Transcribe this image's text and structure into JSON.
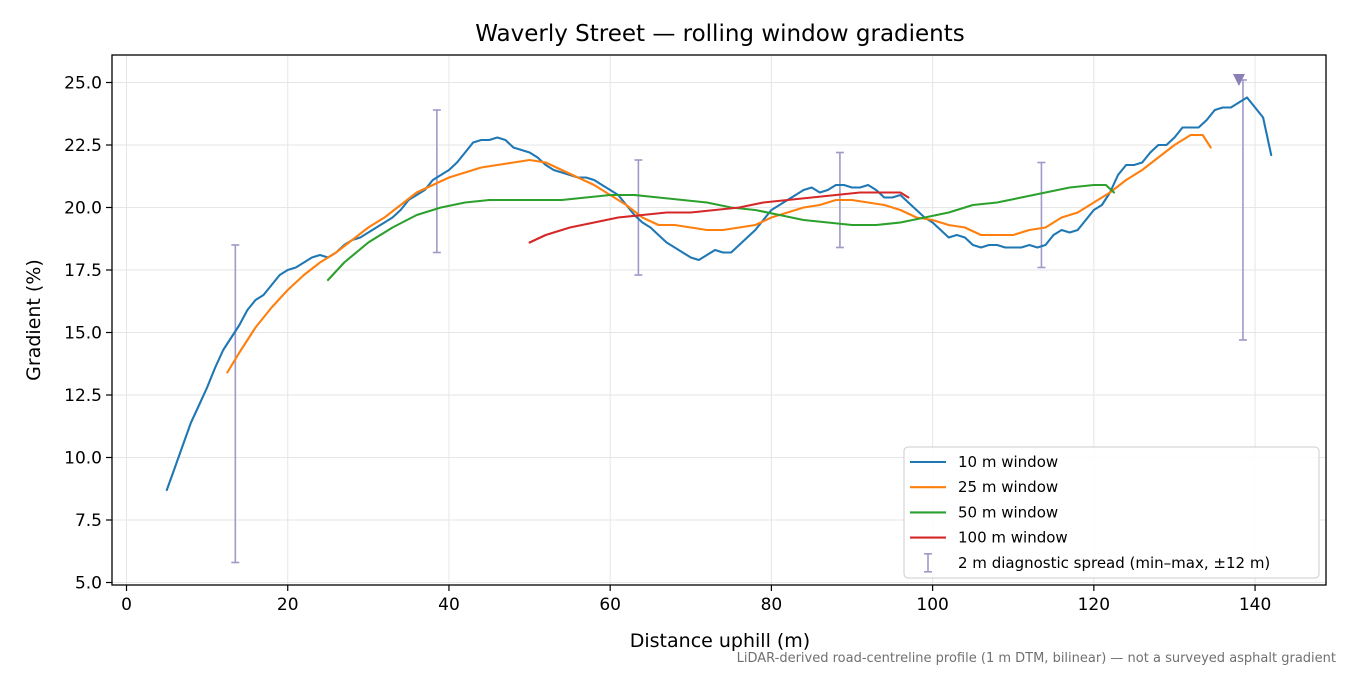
{
  "chart_data": {
    "type": "line",
    "title": "Waverly Street — rolling window gradients",
    "xlabel": "Distance uphill (m)",
    "ylabel": "Gradient (%)",
    "xlim": [
      -1.8,
      148.8
    ],
    "ylim": [
      4.9,
      26.1
    ],
    "x_ticks": [
      0,
      20,
      40,
      60,
      80,
      100,
      120,
      140
    ],
    "y_ticks": [
      5.0,
      7.5,
      10.0,
      12.5,
      15.0,
      17.5,
      20.0,
      22.5,
      25.0
    ],
    "grid": true,
    "legend_position": "lower right",
    "caption": "LiDAR-derived road-centreline profile (1 m DTM, bilinear) — not a surveyed asphalt gradient",
    "series": [
      {
        "name": "10 m window",
        "color": "#1f77b4",
        "points": [
          [
            5,
            8.7
          ],
          [
            6,
            9.6
          ],
          [
            7,
            10.5
          ],
          [
            8,
            11.4
          ],
          [
            9,
            12.1
          ],
          [
            10,
            12.8
          ],
          [
            11,
            13.6
          ],
          [
            12,
            14.3
          ],
          [
            13,
            14.8
          ],
          [
            14,
            15.3
          ],
          [
            15,
            15.9
          ],
          [
            16,
            16.3
          ],
          [
            17,
            16.5
          ],
          [
            18,
            16.9
          ],
          [
            19,
            17.3
          ],
          [
            20,
            17.5
          ],
          [
            21,
            17.6
          ],
          [
            22,
            17.8
          ],
          [
            23,
            18.0
          ],
          [
            24,
            18.1
          ],
          [
            25,
            18.0
          ],
          [
            26,
            18.2
          ],
          [
            27,
            18.5
          ],
          [
            28,
            18.7
          ],
          [
            29,
            18.8
          ],
          [
            30,
            19.0
          ],
          [
            31,
            19.2
          ],
          [
            32,
            19.4
          ],
          [
            33,
            19.6
          ],
          [
            34,
            19.9
          ],
          [
            35,
            20.3
          ],
          [
            36,
            20.5
          ],
          [
            37,
            20.7
          ],
          [
            38,
            21.1
          ],
          [
            39,
            21.3
          ],
          [
            40,
            21.5
          ],
          [
            41,
            21.8
          ],
          [
            42,
            22.2
          ],
          [
            43,
            22.6
          ],
          [
            44,
            22.7
          ],
          [
            45,
            22.7
          ],
          [
            46,
            22.8
          ],
          [
            47,
            22.7
          ],
          [
            48,
            22.4
          ],
          [
            49,
            22.3
          ],
          [
            50,
            22.2
          ],
          [
            51,
            22.0
          ],
          [
            52,
            21.7
          ],
          [
            53,
            21.5
          ],
          [
            54,
            21.4
          ],
          [
            55,
            21.3
          ],
          [
            56,
            21.2
          ],
          [
            57,
            21.2
          ],
          [
            58,
            21.1
          ],
          [
            59,
            20.9
          ],
          [
            60,
            20.7
          ],
          [
            61,
            20.5
          ],
          [
            62,
            20.1
          ],
          [
            63,
            19.7
          ],
          [
            64,
            19.4
          ],
          [
            65,
            19.2
          ],
          [
            66,
            18.9
          ],
          [
            67,
            18.6
          ],
          [
            68,
            18.4
          ],
          [
            69,
            18.2
          ],
          [
            70,
            18.0
          ],
          [
            71,
            17.9
          ],
          [
            72,
            18.1
          ],
          [
            73,
            18.3
          ],
          [
            74,
            18.2
          ],
          [
            75,
            18.2
          ],
          [
            76,
            18.5
          ],
          [
            77,
            18.8
          ],
          [
            78,
            19.1
          ],
          [
            79,
            19.5
          ],
          [
            80,
            19.9
          ],
          [
            81,
            20.1
          ],
          [
            82,
            20.3
          ],
          [
            83,
            20.5
          ],
          [
            84,
            20.7
          ],
          [
            85,
            20.8
          ],
          [
            86,
            20.6
          ],
          [
            87,
            20.7
          ],
          [
            88,
            20.9
          ],
          [
            89,
            20.9
          ],
          [
            90,
            20.8
          ],
          [
            91,
            20.8
          ],
          [
            92,
            20.9
          ],
          [
            93,
            20.7
          ],
          [
            94,
            20.4
          ],
          [
            95,
            20.4
          ],
          [
            96,
            20.5
          ],
          [
            97,
            20.2
          ],
          [
            98,
            19.9
          ],
          [
            99,
            19.6
          ],
          [
            100,
            19.4
          ],
          [
            101,
            19.1
          ],
          [
            102,
            18.8
          ],
          [
            103,
            18.9
          ],
          [
            104,
            18.8
          ],
          [
            105,
            18.5
          ],
          [
            106,
            18.4
          ],
          [
            107,
            18.5
          ],
          [
            108,
            18.5
          ],
          [
            109,
            18.4
          ],
          [
            110,
            18.4
          ],
          [
            111,
            18.4
          ],
          [
            112,
            18.5
          ],
          [
            113,
            18.4
          ],
          [
            114,
            18.5
          ],
          [
            115,
            18.9
          ],
          [
            116,
            19.1
          ],
          [
            117,
            19.0
          ],
          [
            118,
            19.1
          ],
          [
            119,
            19.5
          ],
          [
            120,
            19.9
          ],
          [
            121,
            20.1
          ],
          [
            122,
            20.6
          ],
          [
            123,
            21.3
          ],
          [
            124,
            21.7
          ],
          [
            125,
            21.7
          ],
          [
            126,
            21.8
          ],
          [
            127,
            22.2
          ],
          [
            128,
            22.5
          ],
          [
            129,
            22.5
          ],
          [
            130,
            22.8
          ],
          [
            131,
            23.2
          ],
          [
            132,
            23.2
          ],
          [
            133,
            23.2
          ],
          [
            134,
            23.5
          ],
          [
            135,
            23.9
          ],
          [
            136,
            24.0
          ],
          [
            137,
            24.0
          ],
          [
            138,
            24.2
          ],
          [
            139,
            24.4
          ],
          [
            140,
            24.0
          ],
          [
            141,
            23.6
          ],
          [
            142,
            22.1
          ]
        ]
      },
      {
        "name": "25 m window",
        "color": "#ff7f0e",
        "points": [
          [
            12.5,
            13.4
          ],
          [
            14,
            14.2
          ],
          [
            16,
            15.2
          ],
          [
            18,
            16.0
          ],
          [
            20,
            16.7
          ],
          [
            22,
            17.3
          ],
          [
            24,
            17.8
          ],
          [
            26,
            18.2
          ],
          [
            28,
            18.7
          ],
          [
            30,
            19.2
          ],
          [
            32,
            19.6
          ],
          [
            34,
            20.1
          ],
          [
            36,
            20.6
          ],
          [
            38,
            20.9
          ],
          [
            40,
            21.2
          ],
          [
            42,
            21.4
          ],
          [
            44,
            21.6
          ],
          [
            46,
            21.7
          ],
          [
            48,
            21.8
          ],
          [
            50,
            21.9
          ],
          [
            52,
            21.8
          ],
          [
            54,
            21.5
          ],
          [
            56,
            21.2
          ],
          [
            58,
            20.9
          ],
          [
            60,
            20.5
          ],
          [
            62,
            20.1
          ],
          [
            64,
            19.6
          ],
          [
            66,
            19.3
          ],
          [
            68,
            19.3
          ],
          [
            70,
            19.2
          ],
          [
            72,
            19.1
          ],
          [
            74,
            19.1
          ],
          [
            76,
            19.2
          ],
          [
            78,
            19.3
          ],
          [
            80,
            19.6
          ],
          [
            82,
            19.8
          ],
          [
            84,
            20.0
          ],
          [
            86,
            20.1
          ],
          [
            88,
            20.3
          ],
          [
            90,
            20.3
          ],
          [
            92,
            20.2
          ],
          [
            94,
            20.1
          ],
          [
            96,
            19.9
          ],
          [
            98,
            19.6
          ],
          [
            100,
            19.5
          ],
          [
            102,
            19.3
          ],
          [
            104,
            19.2
          ],
          [
            106,
            18.9
          ],
          [
            108,
            18.9
          ],
          [
            110,
            18.9
          ],
          [
            112,
            19.1
          ],
          [
            114,
            19.2
          ],
          [
            116,
            19.6
          ],
          [
            118,
            19.8
          ],
          [
            120,
            20.2
          ],
          [
            122,
            20.6
          ],
          [
            124,
            21.1
          ],
          [
            126,
            21.5
          ],
          [
            128,
            22.0
          ],
          [
            130,
            22.5
          ],
          [
            132,
            22.9
          ],
          [
            133.5,
            22.9
          ],
          [
            134.5,
            22.4
          ]
        ]
      },
      {
        "name": "50 m window",
        "color": "#2ca02c",
        "points": [
          [
            25,
            17.1
          ],
          [
            27,
            17.8
          ],
          [
            30,
            18.6
          ],
          [
            33,
            19.2
          ],
          [
            36,
            19.7
          ],
          [
            39,
            20.0
          ],
          [
            42,
            20.2
          ],
          [
            45,
            20.3
          ],
          [
            48,
            20.3
          ],
          [
            51,
            20.3
          ],
          [
            54,
            20.3
          ],
          [
            57,
            20.4
          ],
          [
            60,
            20.5
          ],
          [
            63,
            20.5
          ],
          [
            66,
            20.4
          ],
          [
            69,
            20.3
          ],
          [
            72,
            20.2
          ],
          [
            75,
            20.0
          ],
          [
            78,
            19.9
          ],
          [
            81,
            19.7
          ],
          [
            84,
            19.5
          ],
          [
            87,
            19.4
          ],
          [
            90,
            19.3
          ],
          [
            93,
            19.3
          ],
          [
            96,
            19.4
          ],
          [
            99,
            19.6
          ],
          [
            102,
            19.8
          ],
          [
            105,
            20.1
          ],
          [
            108,
            20.2
          ],
          [
            111,
            20.4
          ],
          [
            114,
            20.6
          ],
          [
            117,
            20.8
          ],
          [
            120,
            20.9
          ],
          [
            121.5,
            20.9
          ],
          [
            122.5,
            20.6
          ]
        ]
      },
      {
        "name": "100 m window",
        "color": "#d62728",
        "points": [
          [
            50,
            18.6
          ],
          [
            52,
            18.9
          ],
          [
            55,
            19.2
          ],
          [
            58,
            19.4
          ],
          [
            61,
            19.6
          ],
          [
            64,
            19.7
          ],
          [
            67,
            19.8
          ],
          [
            70,
            19.8
          ],
          [
            73,
            19.9
          ],
          [
            76,
            20.0
          ],
          [
            79,
            20.2
          ],
          [
            82,
            20.3
          ],
          [
            85,
            20.4
          ],
          [
            88,
            20.5
          ],
          [
            91,
            20.6
          ],
          [
            94,
            20.6
          ],
          [
            96,
            20.6
          ],
          [
            97,
            20.4
          ]
        ]
      },
      {
        "name": "2 m diagnostic spread (min–max, ±12 m)",
        "type": "errorbar",
        "color": "#9e9ac8",
        "bars": [
          {
            "x": 13.5,
            "min": 5.8,
            "max": 18.5
          },
          {
            "x": 38.5,
            "min": 18.2,
            "max": 23.9
          },
          {
            "x": 63.5,
            "min": 17.3,
            "max": 21.9
          },
          {
            "x": 88.5,
            "min": 18.4,
            "max": 22.2
          },
          {
            "x": 113.5,
            "min": 17.6,
            "max": 21.8
          },
          {
            "x": 138.5,
            "min": 14.7,
            "max": 25.1
          }
        ]
      }
    ],
    "markers": [
      {
        "x": 138,
        "y": 25.1,
        "shape": "triangle-down",
        "color": "#8c7fb5"
      }
    ]
  }
}
